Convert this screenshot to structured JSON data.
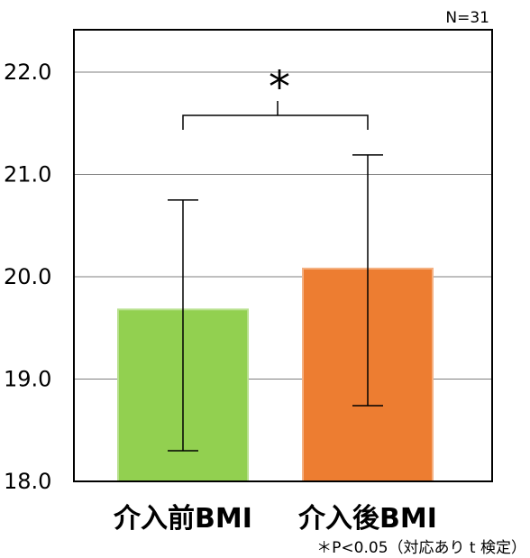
{
  "chart_data": {
    "type": "bar",
    "categories": [
      "介入前BMI",
      "介入後BMI"
    ],
    "values": [
      19.68,
      20.08
    ],
    "error_high": [
      20.75,
      21.19
    ],
    "error_low": [
      18.3,
      18.74
    ],
    "colors": [
      "#92D050",
      "#ED7D31"
    ],
    "ylim": [
      18.0,
      22.3
    ],
    "yticks": [
      "18.0",
      "19.0",
      "20.0",
      "21.0",
      "22.0"
    ],
    "grid": true,
    "sample_size": "N=31",
    "significance_mark": "*",
    "footnote": "＊P<0.05（対応あり t 検定）"
  }
}
